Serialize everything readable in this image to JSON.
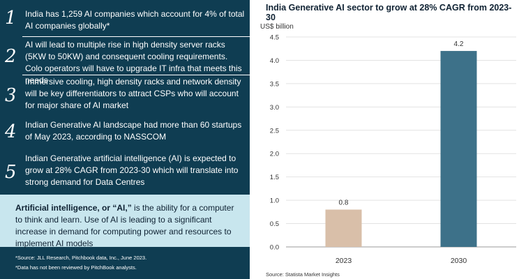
{
  "left_panel": {
    "points": [
      {
        "number": "1",
        "text": "India has 1,259 AI companies which account for 4% of total AI companies globally*"
      },
      {
        "number": "2",
        "text": "AI will lead to multiple rise in high density server racks (5KW to 50KW) and consequent cooling requirements. Colo operators will have to upgrade IT infra that meets this needs"
      },
      {
        "number": "3",
        "text": "Immersive cooling, high density racks and network density will be key differentiators to attract CSPs who will account for major share of AI market"
      },
      {
        "number": "4",
        "text": "Indian Generative AI landscape had more than 60 startups of May 2023, according to NASSCOM"
      },
      {
        "number": "5",
        "text": "Indian Generative artificial intelligence (AI) is expected to grow at 28% CAGR from 2023-30 which will translate into strong demand for Data Centres"
      }
    ],
    "definition": {
      "term": "Artificial intelligence, or “AI,”",
      "text": " is the ability for a computer to think and learn. Use of AI is leading to a significant increase in demand for computing power and resources to implement AI models"
    },
    "notes": [
      "*Source: JLL Research, Pitchbook data, Inc., June 2023.",
      "*Data has not been reviewed by PitchBook analysts."
    ]
  },
  "chart_data": {
    "type": "bar",
    "title": "India Generative AI sector to grow at 28% CAGR from 2023-30",
    "ylabel": "US$ billion",
    "xlabel": "",
    "categories": [
      "2023",
      "2030"
    ],
    "values": [
      0.8,
      4.2
    ],
    "value_labels": [
      "0.8",
      "4.2"
    ],
    "bar_colors": [
      "#d9bfa9",
      "#3d7189"
    ],
    "ylim": [
      0,
      4.5
    ],
    "yticks": [
      "0.0",
      "0.5",
      "1.0",
      "1.5",
      "2.0",
      "2.5",
      "3.0",
      "3.5",
      "4.0",
      "4.5"
    ],
    "grid": true,
    "source": "Source: Statista Market Insights"
  }
}
